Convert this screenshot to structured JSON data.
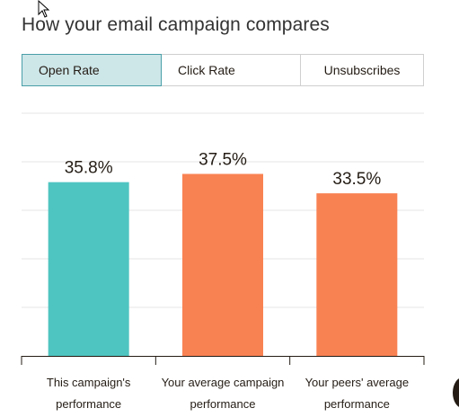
{
  "header": {
    "title": "How your email campaign compares"
  },
  "tabs": [
    {
      "label": "Open Rate",
      "active": true
    },
    {
      "label": "Click Rate",
      "active": false
    },
    {
      "label": "Unsubscribes",
      "active": false
    }
  ],
  "colors": {
    "current": "#4fc5c1",
    "comparison": "#f98253",
    "tab_active_bg": "#cde6e8"
  },
  "icons": {
    "cursor": "mouse-pointer-icon",
    "help": "help-bubble-icon"
  },
  "chart_data": {
    "type": "bar",
    "categories": [
      [
        "This campaign's",
        "performance"
      ],
      [
        "Your average campaign",
        "performance"
      ],
      [
        "Your peers' average",
        "performance"
      ]
    ],
    "values": [
      35.8,
      37.5,
      33.5
    ],
    "value_labels": [
      "35.8%",
      "37.5%",
      "33.5%"
    ],
    "bar_colors": [
      "#4fc5c1",
      "#f98253",
      "#f98253"
    ],
    "title": "",
    "xlabel": "",
    "ylabel": "",
    "ylim": [
      0,
      50
    ],
    "grid": true,
    "legend": "none"
  }
}
